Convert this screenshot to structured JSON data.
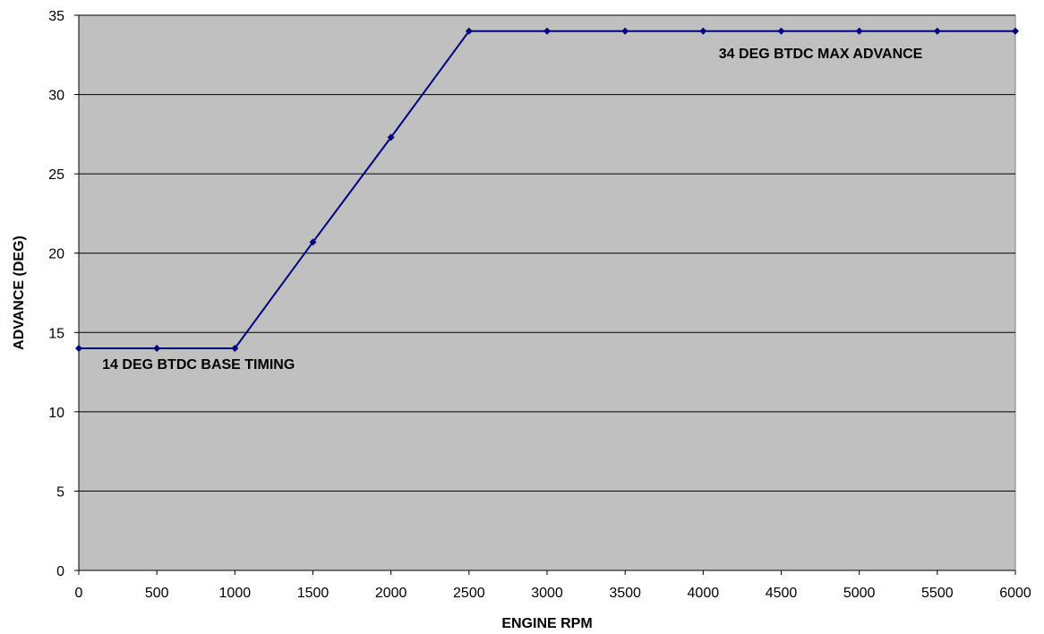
{
  "chart_data": {
    "type": "line",
    "title": "",
    "xlabel": "ENGINE RPM",
    "ylabel": "ADVANCE (DEG)",
    "xlim": [
      0,
      6000
    ],
    "ylim": [
      0,
      35
    ],
    "x_ticks": [
      0,
      500,
      1000,
      1500,
      2000,
      2500,
      3000,
      3500,
      4000,
      4500,
      5000,
      5500,
      6000
    ],
    "y_ticks": [
      0,
      5,
      10,
      15,
      20,
      25,
      30,
      35
    ],
    "grid": "horizontal",
    "plot_background": "#c0c0c0",
    "series": [
      {
        "color": "#000080",
        "x": [
          0,
          500,
          1000,
          1500,
          2000,
          2500,
          3000,
          3500,
          4000,
          4500,
          5000,
          5500,
          6000
        ],
        "y": [
          14,
          14,
          14,
          20.7,
          27.3,
          34,
          34,
          34,
          34,
          34,
          34,
          34,
          34
        ]
      }
    ],
    "annotations": [
      {
        "text": "14 DEG BTDC BASE TIMING",
        "x": 150,
        "y": 12.7
      },
      {
        "text": "34 DEG BTDC MAX ADVANCE",
        "x": 4100,
        "y": 32.3
      }
    ]
  }
}
